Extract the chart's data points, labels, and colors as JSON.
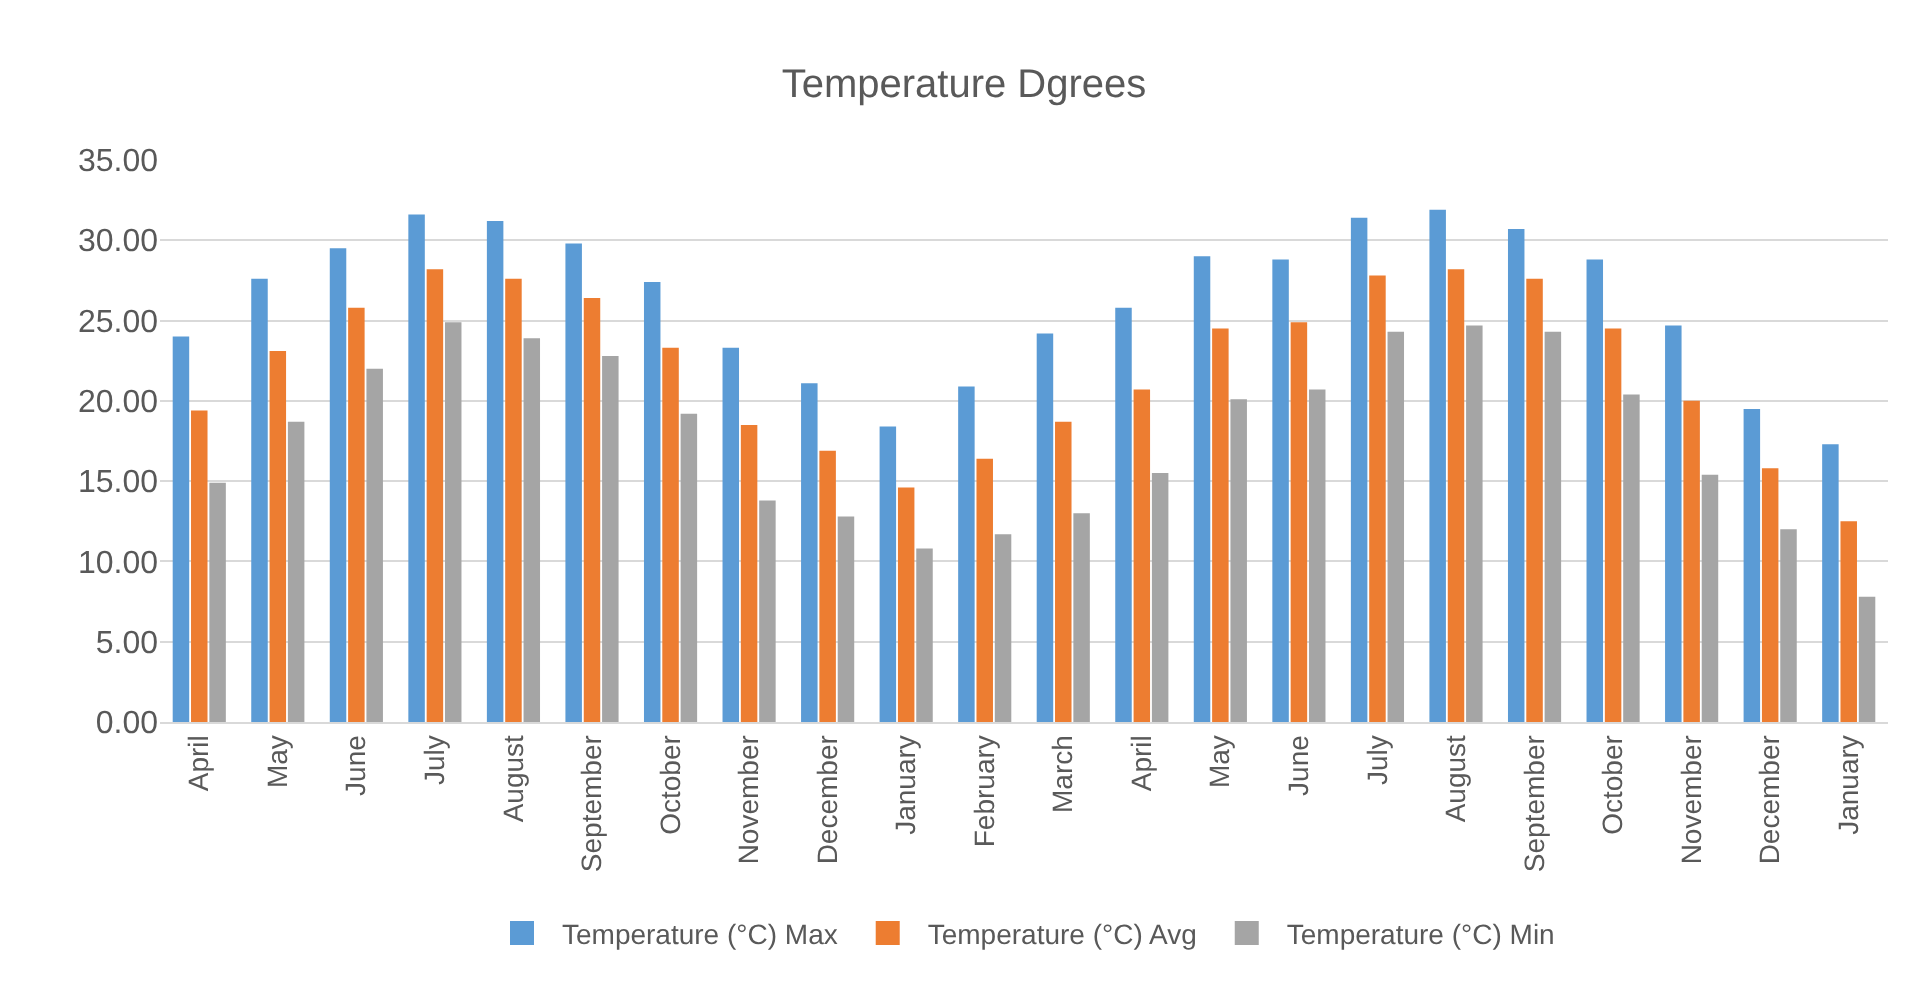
{
  "chart_data": {
    "type": "bar",
    "title": "Temperature Dgrees",
    "categories": [
      "April",
      "May",
      "June",
      "July",
      "August",
      "September",
      "October",
      "November",
      "December",
      "January",
      "February",
      "March",
      "April",
      "May",
      "June",
      "July",
      "August",
      "September",
      "October",
      "November",
      "December",
      "January"
    ],
    "series": [
      {
        "name": "Temperature (°C) Max",
        "color": "#5b9bd5",
        "values": [
          24,
          27.6,
          29.5,
          31.6,
          31.2,
          29.8,
          27.4,
          23.3,
          21.1,
          18.4,
          20.9,
          24.2,
          25.8,
          29,
          28.8,
          31.4,
          31.9,
          30.7,
          28.8,
          24.7,
          19.5,
          17.3
        ]
      },
      {
        "name": "Temperature (°C) Avg",
        "color": "#ed7d31",
        "values": [
          19.4,
          23.1,
          25.8,
          28.2,
          27.6,
          26.4,
          23.3,
          18.5,
          16.9,
          14.6,
          16.4,
          18.7,
          20.7,
          24.5,
          24.9,
          27.8,
          28.2,
          27.6,
          24.5,
          20,
          15.8,
          12.5
        ]
      },
      {
        "name": "Temperature (°C) Min",
        "color": "#a5a5a5",
        "values": [
          14.9,
          18.7,
          22,
          24.9,
          23.9,
          22.8,
          19.2,
          13.8,
          12.8,
          10.8,
          11.7,
          13,
          15.5,
          20.1,
          20.7,
          24.3,
          24.7,
          24.3,
          20.4,
          15.4,
          12,
          7.8
        ]
      }
    ],
    "ylim": [
      0,
      35
    ],
    "yticks": [
      {
        "value": 0,
        "label": "0.00"
      },
      {
        "value": 5,
        "label": "5.00"
      },
      {
        "value": 10,
        "label": "10.00"
      },
      {
        "value": 15,
        "label": "15.00"
      },
      {
        "value": 20,
        "label": "20.00"
      },
      {
        "value": 25,
        "label": "25.00"
      },
      {
        "value": 30,
        "label": "30.00"
      },
      {
        "value": 35,
        "label": "35.00"
      }
    ],
    "grid": "y",
    "legend": "bottom"
  }
}
